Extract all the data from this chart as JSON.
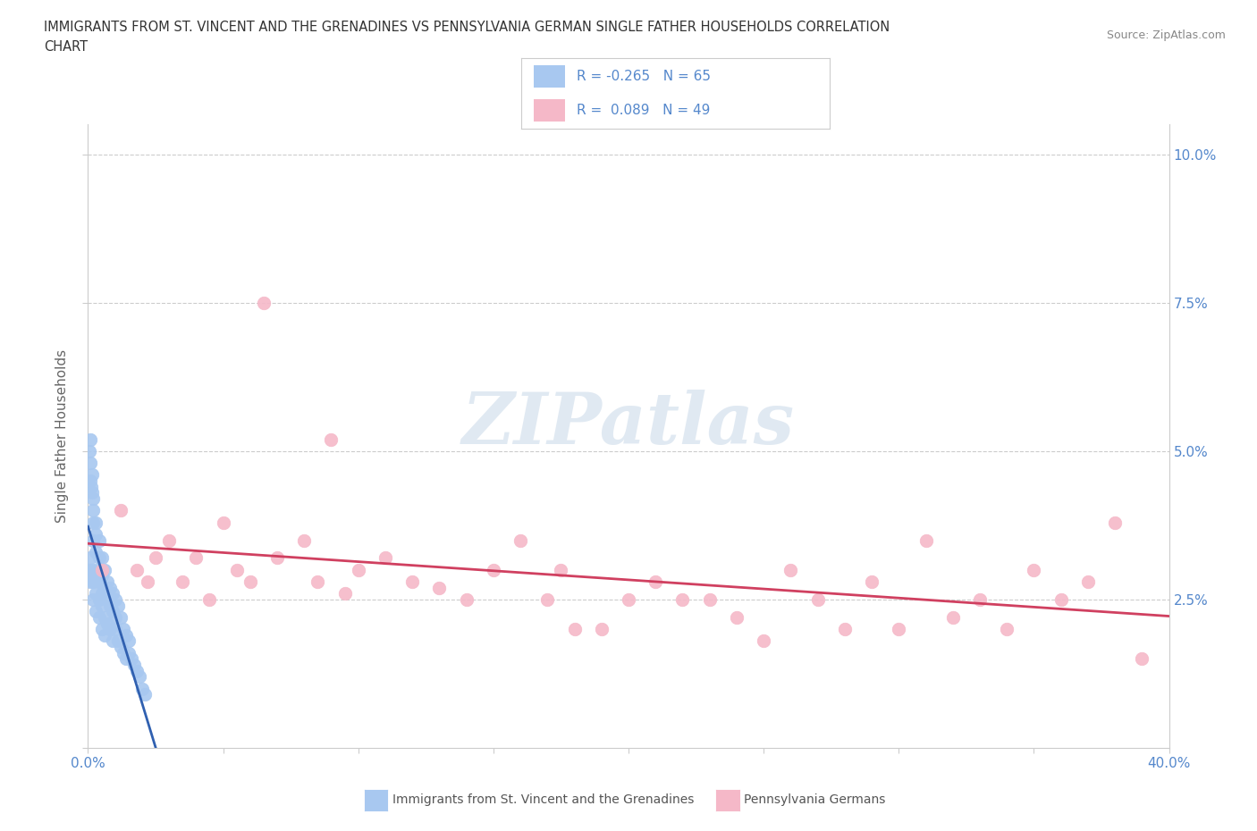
{
  "title_line1": "IMMIGRANTS FROM ST. VINCENT AND THE GRENADINES VS PENNSYLVANIA GERMAN SINGLE FATHER HOUSEHOLDS CORRELATION",
  "title_line2": "CHART",
  "source": "Source: ZipAtlas.com",
  "ylabel": "Single Father Households",
  "xlim": [
    0.0,
    0.4
  ],
  "ylim": [
    0.0,
    0.105
  ],
  "blue_color": "#a8c8f0",
  "pink_color": "#f5b8c8",
  "trend_blue": "#3060b0",
  "trend_pink": "#d04060",
  "trend_blue_dash": "#b0c8e8",
  "grid_color": "#cccccc",
  "background_color": "#ffffff",
  "R_blue": -0.265,
  "N_blue": 65,
  "R_pink": 0.089,
  "N_pink": 49,
  "legend_label_blue": "Immigrants from St. Vincent and the Grenadines",
  "legend_label_pink": "Pennsylvania Germans",
  "watermark": "ZIPatlas",
  "legend_text_color": "#5588cc",
  "title_color": "#333333",
  "source_color": "#888888",
  "tick_color": "#5588cc",
  "blue_x": [
    0.0005,
    0.0008,
    0.001,
    0.001,
    0.0012,
    0.0015,
    0.0015,
    0.002,
    0.002,
    0.002,
    0.002,
    0.003,
    0.003,
    0.003,
    0.003,
    0.004,
    0.004,
    0.004,
    0.005,
    0.005,
    0.005,
    0.006,
    0.006,
    0.007,
    0.007,
    0.008,
    0.008,
    0.009,
    0.009,
    0.01,
    0.01,
    0.011,
    0.012,
    0.013,
    0.014,
    0.015,
    0.0005,
    0.001,
    0.001,
    0.0015,
    0.002,
    0.002,
    0.003,
    0.003,
    0.004,
    0.004,
    0.005,
    0.005,
    0.006,
    0.006,
    0.007,
    0.008,
    0.009,
    0.01,
    0.011,
    0.012,
    0.013,
    0.014,
    0.015,
    0.016,
    0.017,
    0.018,
    0.019,
    0.02,
    0.021
  ],
  "blue_y": [
    0.05,
    0.048,
    0.052,
    0.045,
    0.044,
    0.043,
    0.046,
    0.042,
    0.04,
    0.038,
    0.035,
    0.038,
    0.036,
    0.033,
    0.03,
    0.035,
    0.032,
    0.028,
    0.032,
    0.029,
    0.026,
    0.03,
    0.027,
    0.028,
    0.025,
    0.027,
    0.024,
    0.026,
    0.023,
    0.025,
    0.022,
    0.024,
    0.022,
    0.02,
    0.019,
    0.018,
    0.03,
    0.028,
    0.032,
    0.03,
    0.028,
    0.025,
    0.026,
    0.023,
    0.025,
    0.022,
    0.024,
    0.02,
    0.022,
    0.019,
    0.021,
    0.02,
    0.018,
    0.02,
    0.018,
    0.017,
    0.016,
    0.015,
    0.016,
    0.015,
    0.014,
    0.013,
    0.012,
    0.01,
    0.009
  ],
  "pink_x": [
    0.005,
    0.012,
    0.018,
    0.022,
    0.025,
    0.03,
    0.035,
    0.04,
    0.045,
    0.05,
    0.055,
    0.06,
    0.065,
    0.07,
    0.08,
    0.085,
    0.09,
    0.095,
    0.1,
    0.11,
    0.12,
    0.13,
    0.14,
    0.15,
    0.16,
    0.17,
    0.175,
    0.18,
    0.19,
    0.2,
    0.21,
    0.22,
    0.23,
    0.24,
    0.25,
    0.26,
    0.27,
    0.28,
    0.29,
    0.3,
    0.31,
    0.32,
    0.33,
    0.34,
    0.35,
    0.36,
    0.37,
    0.38,
    0.39
  ],
  "pink_y": [
    0.03,
    0.04,
    0.03,
    0.028,
    0.032,
    0.035,
    0.028,
    0.032,
    0.025,
    0.038,
    0.03,
    0.028,
    0.075,
    0.032,
    0.035,
    0.028,
    0.052,
    0.026,
    0.03,
    0.032,
    0.028,
    0.027,
    0.025,
    0.03,
    0.035,
    0.025,
    0.03,
    0.02,
    0.02,
    0.025,
    0.028,
    0.025,
    0.025,
    0.022,
    0.018,
    0.03,
    0.025,
    0.02,
    0.028,
    0.02,
    0.035,
    0.022,
    0.025,
    0.02,
    0.03,
    0.025,
    0.028,
    0.038,
    0.015
  ]
}
